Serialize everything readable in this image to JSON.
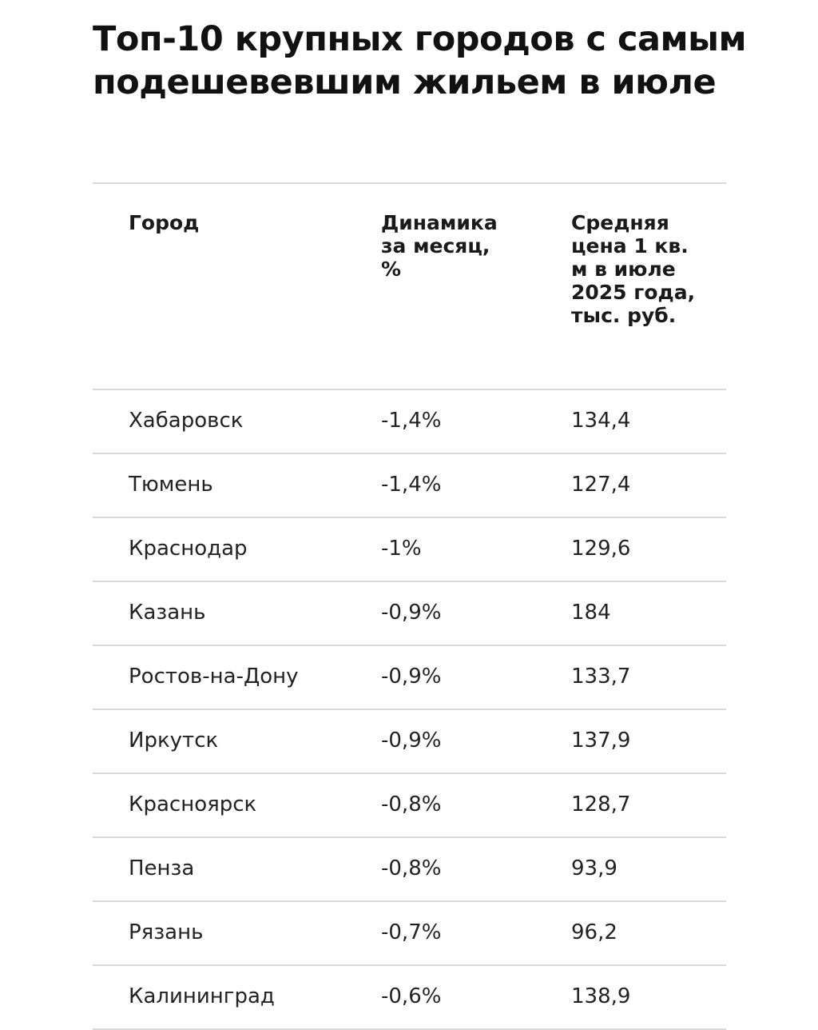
{
  "chart_data": {
    "type": "table",
    "title": "Топ-10 крупных городов с самым подешевевшим жильем в июле",
    "columns": [
      "Город",
      "Динамика за месяц, %",
      "Средняя цена 1 кв. м в июле 2025 года, тыс. руб."
    ],
    "rows": [
      {
        "city": "Хабаровск",
        "change": "-1,4%",
        "price": "134,4"
      },
      {
        "city": "Тюмень",
        "change": "-1,4%",
        "price": "127,4"
      },
      {
        "city": "Краснодар",
        "change": "-1%",
        "price": "129,6"
      },
      {
        "city": "Казань",
        "change": "-0,9%",
        "price": "184"
      },
      {
        "city": "Ростов-на-Дону",
        "change": "-0,9%",
        "price": "133,7"
      },
      {
        "city": "Иркутск",
        "change": "-0,9%",
        "price": "137,9"
      },
      {
        "city": "Красноярск",
        "change": "-0,8%",
        "price": "128,7"
      },
      {
        "city": "Пенза",
        "change": "-0,8%",
        "price": "93,9"
      },
      {
        "city": "Рязань",
        "change": "-0,7%",
        "price": "96,2"
      },
      {
        "city": "Калининград",
        "change": "-0,6%",
        "price": "138,9"
      }
    ]
  }
}
